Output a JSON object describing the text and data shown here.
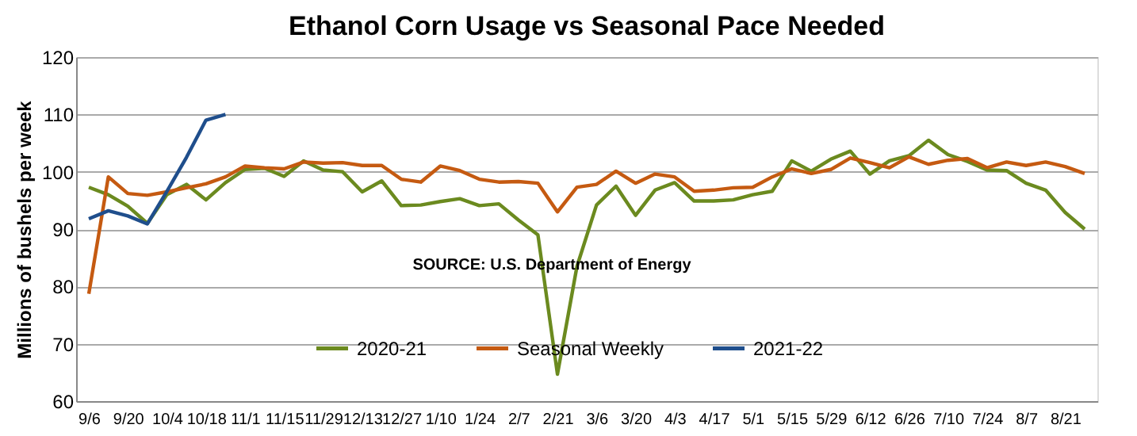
{
  "chart_data": {
    "type": "line",
    "title": "Ethanol Corn Usage vs Seasonal Pace Needed",
    "ylabel": "Millions of bushels per week",
    "categories": [
      "9/6",
      null,
      "9/20",
      null,
      "10/4",
      null,
      "10/18",
      null,
      "11/1",
      null,
      "11/15",
      null,
      "11/29",
      null,
      "12/13",
      null,
      "12/27",
      null,
      "1/10",
      null,
      "1/24",
      null,
      "2/7",
      null,
      "2/21",
      null,
      "3/6",
      null,
      "3/20",
      null,
      "4/3",
      null,
      "4/17",
      null,
      "5/1",
      null,
      "5/15",
      null,
      "5/29",
      null,
      "6/12",
      null,
      "6/26",
      null,
      "7/10",
      null,
      "7/24",
      null,
      "8/7",
      null,
      "8/21",
      null
    ],
    "series": [
      {
        "name": "2020-21",
        "color": "#6b8a1f",
        "values": [
          97.3,
          96,
          94,
          91,
          96,
          97.8,
          95.1,
          98.1,
          100.4,
          100.6,
          99.2,
          101.9,
          100.3,
          100,
          96.5,
          98.4,
          94.1,
          94.2,
          94.8,
          95.3,
          94.1,
          94.4,
          91.6,
          89,
          64.7,
          83.5,
          94.2,
          97.5,
          92.4,
          96.8,
          98.1,
          94.9,
          94.9,
          95.1,
          96,
          96.6,
          101.9,
          100.1,
          102.2,
          103.6,
          99.6,
          101.9,
          102.8,
          105.5,
          103,
          101.8,
          100.3,
          100.2,
          98,
          96.8,
          92.9,
          90
        ]
      },
      {
        "name": "Seasonal Weekly",
        "color": "#c55a11",
        "values": [
          78.7,
          99.1,
          96.2,
          95.9,
          96.5,
          97.2,
          97.9,
          99.1,
          101,
          100.7,
          100.5,
          101.7,
          101.5,
          101.6,
          101.1,
          101.1,
          98.7,
          98.2,
          101,
          100.2,
          98.7,
          98.2,
          98.3,
          98,
          93,
          97.3,
          97.8,
          100.1,
          98,
          99.6,
          99.1,
          96.6,
          96.8,
          97.2,
          97.3,
          99.1,
          100.5,
          99.7,
          100.4,
          102.4,
          101.6,
          100.7,
          102.6,
          101.3,
          102,
          102.3,
          100.7,
          101.7,
          101.1,
          101.7,
          100.9,
          99.7
        ]
      },
      {
        "name": "2021-22",
        "color": "#1f4e8c",
        "values": [
          91.8,
          93.2,
          92.3,
          90.9,
          96.6,
          102.5,
          109,
          110,
          null,
          null,
          null,
          null,
          null,
          null,
          null,
          null,
          null,
          null,
          null,
          null,
          null,
          null,
          null,
          null,
          null,
          null,
          null,
          null,
          null,
          null,
          null,
          null,
          null,
          null,
          null,
          null,
          null,
          null,
          null,
          null,
          null,
          null,
          null,
          null,
          null,
          null,
          null,
          null,
          null,
          null,
          null,
          null
        ]
      }
    ],
    "ylim": [
      60,
      120
    ],
    "yticks": [
      60,
      70,
      80,
      90,
      100,
      110,
      120
    ],
    "grid": "y",
    "legend": "bottom",
    "marker": "none",
    "line_style": "solid",
    "annotations": [
      "SOURCE: U.S. Department of Energy"
    ]
  }
}
